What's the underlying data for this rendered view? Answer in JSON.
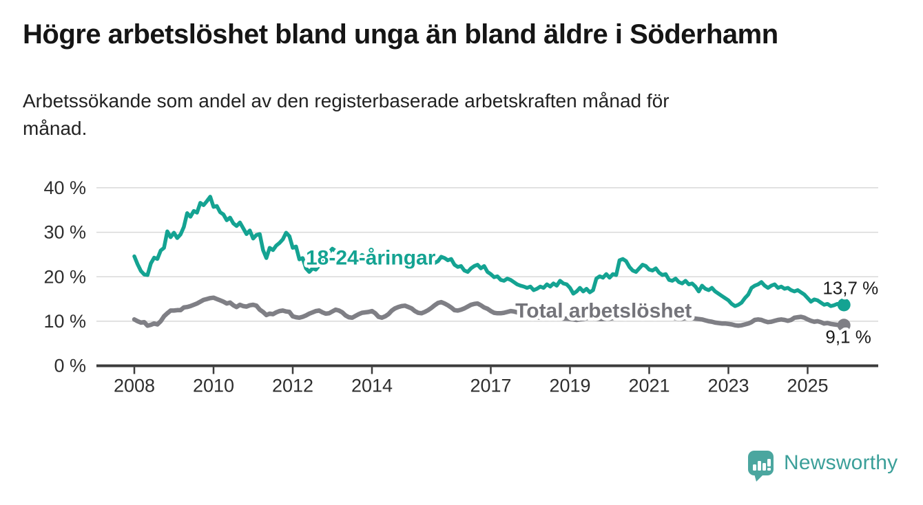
{
  "page": {
    "region_label": "Söderhamn"
  },
  "branding": {
    "logo_text": "Newsworthy",
    "logo_text_color": "#3b9f99",
    "logo_mark_color": "#4ba69f",
    "logo_mark_icon": "speech-bubble-bar-chart-exclamation"
  },
  "chart_data": {
    "type": "line",
    "title": "Högre arbetslöshet bland unga än bland äldre i Söderhamn",
    "subtitle": "Arbetssökande som andel av den registerbaserade arbetskraften månad för\nmånad.",
    "unit": "%",
    "frequency": "monthly",
    "x_start": "2008-01",
    "x_end": "2025-12",
    "xlim": [
      2007.05,
      2026.8
    ],
    "ylim": [
      0,
      42
    ],
    "grid": "horizontal",
    "legend": "inline-labels",
    "colors": {
      "young": "#14a392",
      "total": "#7f7f85",
      "grid": "#d8d8d8",
      "axis": "#3c3c3c",
      "axis_text": "#2e2e2e",
      "value_text": "#1a1a1a"
    },
    "x_ticks": [
      {
        "label": "2008",
        "year": 2008
      },
      {
        "label": "2010",
        "year": 2010
      },
      {
        "label": "2012",
        "year": 2012
      },
      {
        "label": "2014",
        "year": 2014
      },
      {
        "label": "2017",
        "year": 2017
      },
      {
        "label": "2019",
        "year": 2019
      },
      {
        "label": "2021",
        "year": 2021
      },
      {
        "label": "2023",
        "year": 2023
      },
      {
        "label": "2025",
        "year": 2025
      }
    ],
    "y_ticks": [
      {
        "label": "0 %",
        "value": 0
      },
      {
        "label": "10 %",
        "value": 10
      },
      {
        "label": "20 %",
        "value": 20
      },
      {
        "label": "30 %",
        "value": 30
      },
      {
        "label": "40 %",
        "value": 40
      }
    ],
    "series": [
      {
        "name": "18-24-åringar",
        "color": "#14a392",
        "line_width": 5.5,
        "end_dot_radius": 9.5,
        "end_label": "13,7 %",
        "end_value": 13.7,
        "values": [
          24.6,
          22.8,
          21.3,
          20.5,
          20.4,
          23.0,
          24.3,
          24.0,
          25.9,
          26.5,
          30.2,
          28.9,
          29.9,
          28.7,
          29.5,
          31.2,
          34.3,
          33.5,
          34.8,
          34.4,
          36.6,
          36.1,
          37.0,
          38.0,
          35.7,
          35.9,
          34.5,
          34.0,
          32.7,
          33.3,
          32.0,
          31.4,
          32.2,
          30.9,
          29.6,
          30.4,
          28.6,
          29.4,
          29.6,
          26.0,
          24.2,
          26.5,
          26.0,
          27.0,
          27.6,
          28.4,
          29.9,
          29.1,
          26.5,
          26.8,
          23.9,
          24.2,
          21.9,
          21.1,
          21.9,
          21.6,
          22.5,
          23.5,
          24.5,
          25.5,
          26.3,
          25.8,
          25.2,
          24.6,
          24.2,
          24.8,
          24.4,
          23.8,
          24.3,
          24.9,
          24.5,
          24.0,
          24.6,
          24.2,
          23.6,
          23.2,
          23.7,
          24.1,
          23.6,
          23.2,
          23.8,
          24.4,
          24.0,
          23.6,
          24.1,
          23.7,
          23.3,
          23.0,
          23.4,
          23.8,
          23.4,
          23.1,
          23.5,
          24.5,
          24.2,
          23.7,
          24.0,
          22.7,
          22.2,
          22.4,
          21.4,
          21.1,
          21.9,
          22.4,
          22.7,
          21.9,
          22.4,
          21.1,
          20.6,
          19.9,
          20.1,
          19.3,
          19.1,
          19.6,
          19.3,
          18.8,
          18.3,
          18.0,
          17.8,
          17.5,
          17.8,
          17.0,
          17.3,
          17.8,
          17.5,
          18.3,
          17.8,
          18.5,
          18.0,
          19.1,
          18.5,
          18.3,
          17.5,
          16.2,
          16.7,
          17.5,
          16.7,
          17.3,
          16.5,
          17.0,
          19.6,
          20.1,
          19.8,
          20.6,
          19.8,
          20.6,
          20.4,
          23.7,
          24.0,
          23.5,
          22.2,
          21.4,
          21.1,
          21.9,
          22.7,
          22.4,
          21.6,
          21.4,
          21.9,
          20.9,
          20.4,
          20.6,
          19.3,
          19.1,
          19.6,
          18.8,
          18.5,
          19.1,
          18.3,
          18.5,
          17.8,
          16.7,
          18.0,
          17.3,
          17.0,
          17.5,
          16.7,
          16.2,
          15.7,
          15.2,
          14.7,
          13.9,
          13.4,
          13.7,
          14.2,
          15.2,
          16.0,
          17.5,
          18.0,
          18.3,
          18.8,
          18.0,
          17.5,
          18.0,
          18.3,
          17.5,
          17.8,
          17.3,
          17.5,
          17.0,
          16.7,
          17.0,
          16.5,
          16.0,
          15.2,
          14.4,
          14.9,
          14.7,
          14.2,
          13.7,
          13.9,
          13.4,
          13.6,
          13.9,
          13.5,
          13.7
        ]
      },
      {
        "name": "Total arbetslöshet",
        "color": "#7f7f85",
        "line_width": 6.5,
        "end_dot_radius": 9.5,
        "end_label": "9,1 %",
        "end_value": 9.1,
        "values": [
          10.4,
          10.0,
          9.7,
          9.8,
          9.0,
          9.2,
          9.5,
          9.3,
          10.0,
          11.1,
          11.8,
          12.4,
          12.4,
          12.5,
          12.5,
          13.1,
          13.2,
          13.4,
          13.7,
          14.0,
          14.4,
          14.8,
          15.0,
          15.2,
          15.3,
          15.0,
          14.7,
          14.4,
          14.0,
          14.2,
          13.6,
          13.2,
          13.7,
          13.4,
          13.3,
          13.6,
          13.7,
          13.5,
          12.6,
          12.1,
          11.4,
          11.7,
          11.6,
          12.0,
          12.3,
          12.4,
          12.2,
          12.1,
          11.1,
          10.9,
          10.8,
          11.0,
          11.3,
          11.7,
          12.0,
          12.3,
          12.4,
          12.0,
          11.7,
          11.8,
          12.2,
          12.6,
          12.4,
          12.0,
          11.3,
          10.9,
          10.8,
          11.2,
          11.6,
          11.9,
          12.0,
          12.1,
          12.3,
          11.8,
          11.0,
          10.8,
          11.1,
          11.6,
          12.4,
          12.9,
          13.2,
          13.4,
          13.5,
          13.2,
          12.9,
          12.3,
          11.9,
          11.8,
          12.1,
          12.5,
          13.0,
          13.6,
          14.1,
          14.3,
          14.0,
          13.6,
          13.1,
          12.5,
          12.4,
          12.6,
          12.9,
          13.3,
          13.7,
          13.9,
          14.0,
          13.6,
          13.1,
          12.8,
          12.3,
          11.9,
          11.8,
          11.8,
          11.9,
          12.1,
          12.3,
          12.2,
          12.0,
          11.8,
          11.6,
          11.5,
          11.3,
          11.1,
          10.9,
          10.8,
          10.9,
          11.1,
          11.2,
          11.0,
          10.8,
          10.7,
          10.6,
          10.6,
          10.5,
          10.4,
          10.3,
          10.4,
          10.5,
          10.7,
          10.8,
          10.7,
          10.6,
          10.5,
          10.5,
          10.6,
          10.6,
          10.7,
          11.0,
          11.6,
          12.0,
          12.2,
          12.3,
          12.2,
          12.1,
          11.9,
          11.8,
          11.8,
          11.8,
          11.7,
          11.5,
          11.3,
          11.1,
          11.0,
          10.9,
          10.8,
          10.7,
          10.6,
          10.6,
          10.7,
          10.7,
          10.7,
          10.6,
          10.5,
          10.4,
          10.2,
          10.0,
          9.9,
          9.7,
          9.6,
          9.5,
          9.5,
          9.4,
          9.3,
          9.1,
          9.0,
          9.1,
          9.3,
          9.5,
          9.8,
          10.3,
          10.4,
          10.3,
          10.0,
          9.8,
          9.9,
          10.1,
          10.3,
          10.4,
          10.3,
          10.1,
          10.3,
          10.8,
          10.9,
          11.0,
          10.8,
          10.4,
          10.1,
          9.9,
          10.0,
          9.8,
          9.5,
          9.6,
          9.4,
          9.3,
          9.2,
          9.0,
          9.1
        ]
      }
    ],
    "annotations": [
      {
        "id": "label-young",
        "text": "18-24-åringar",
        "x": 2012.33,
        "y": 24.2,
        "color": "#14a392",
        "bold": true,
        "size": 30
      },
      {
        "id": "label-total",
        "text": "Total arbetslöshet",
        "x": 2017.62,
        "y": 12.3,
        "color": "#74747a",
        "bold": true,
        "size": 30
      },
      {
        "id": "value-young",
        "text": "13,7 %",
        "x": 2025.38,
        "y": 17.5,
        "color": "#1a1a1a",
        "bold": false,
        "size": 26
      },
      {
        "id": "value-total",
        "text": "9,1 %",
        "x": 2025.45,
        "y": 6.5,
        "color": "#1a1a1a",
        "bold": false,
        "size": 26
      }
    ]
  }
}
